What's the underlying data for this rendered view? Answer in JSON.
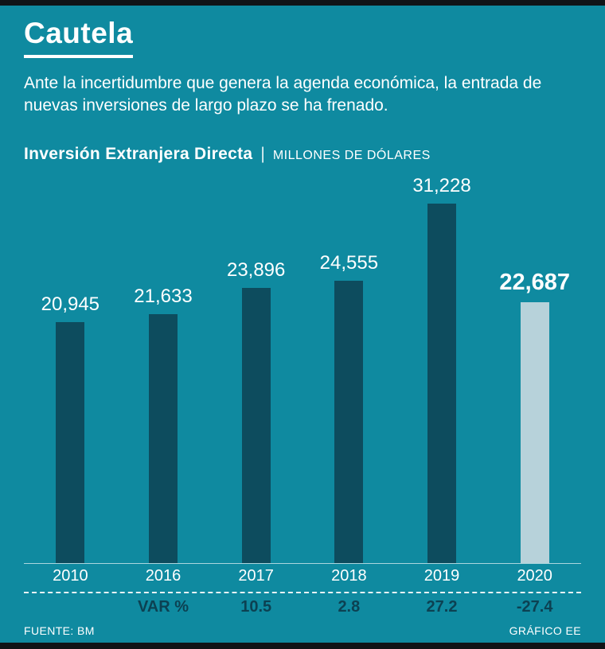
{
  "header": {
    "title": "Cautela",
    "subtitle": "Ante la incertidumbre que genera la agenda económica, la entrada de nuevas inversiones de largo plazo se ha frenado."
  },
  "chart_header": {
    "title": "Inversión Extranjera Directa",
    "separator": "|",
    "units": "MILLONES DE DÓLARES"
  },
  "chart_data": {
    "type": "bar",
    "title": "Inversión Extranjera Directa",
    "units": "MILLONES DE DÓLARES",
    "categories": [
      "2010",
      "2016",
      "2017",
      "2018",
      "2019",
      "2020"
    ],
    "values": [
      20945,
      21633,
      23896,
      24555,
      31228,
      22687
    ],
    "value_labels": [
      "20,945",
      "21,633",
      "23,896",
      "24,555",
      "31,228",
      "22,687"
    ],
    "highlight_index": 5,
    "ylim": [
      0,
      31228
    ],
    "grid": false,
    "legend": false,
    "var_row": {
      "label": "VAR %",
      "label_column": 1,
      "values": [
        "",
        "",
        "10.5",
        "2.8",
        "27.2",
        "-27.4"
      ]
    },
    "colors": {
      "background": "#0f8aa0",
      "bar": "#0d4c5e",
      "highlight_bar": "#b7d2da",
      "text": "#ffffff",
      "var_text": "#0c4152"
    }
  },
  "footer": {
    "source": "FUENTE: BM",
    "credit": "GRÁFICO EE"
  }
}
